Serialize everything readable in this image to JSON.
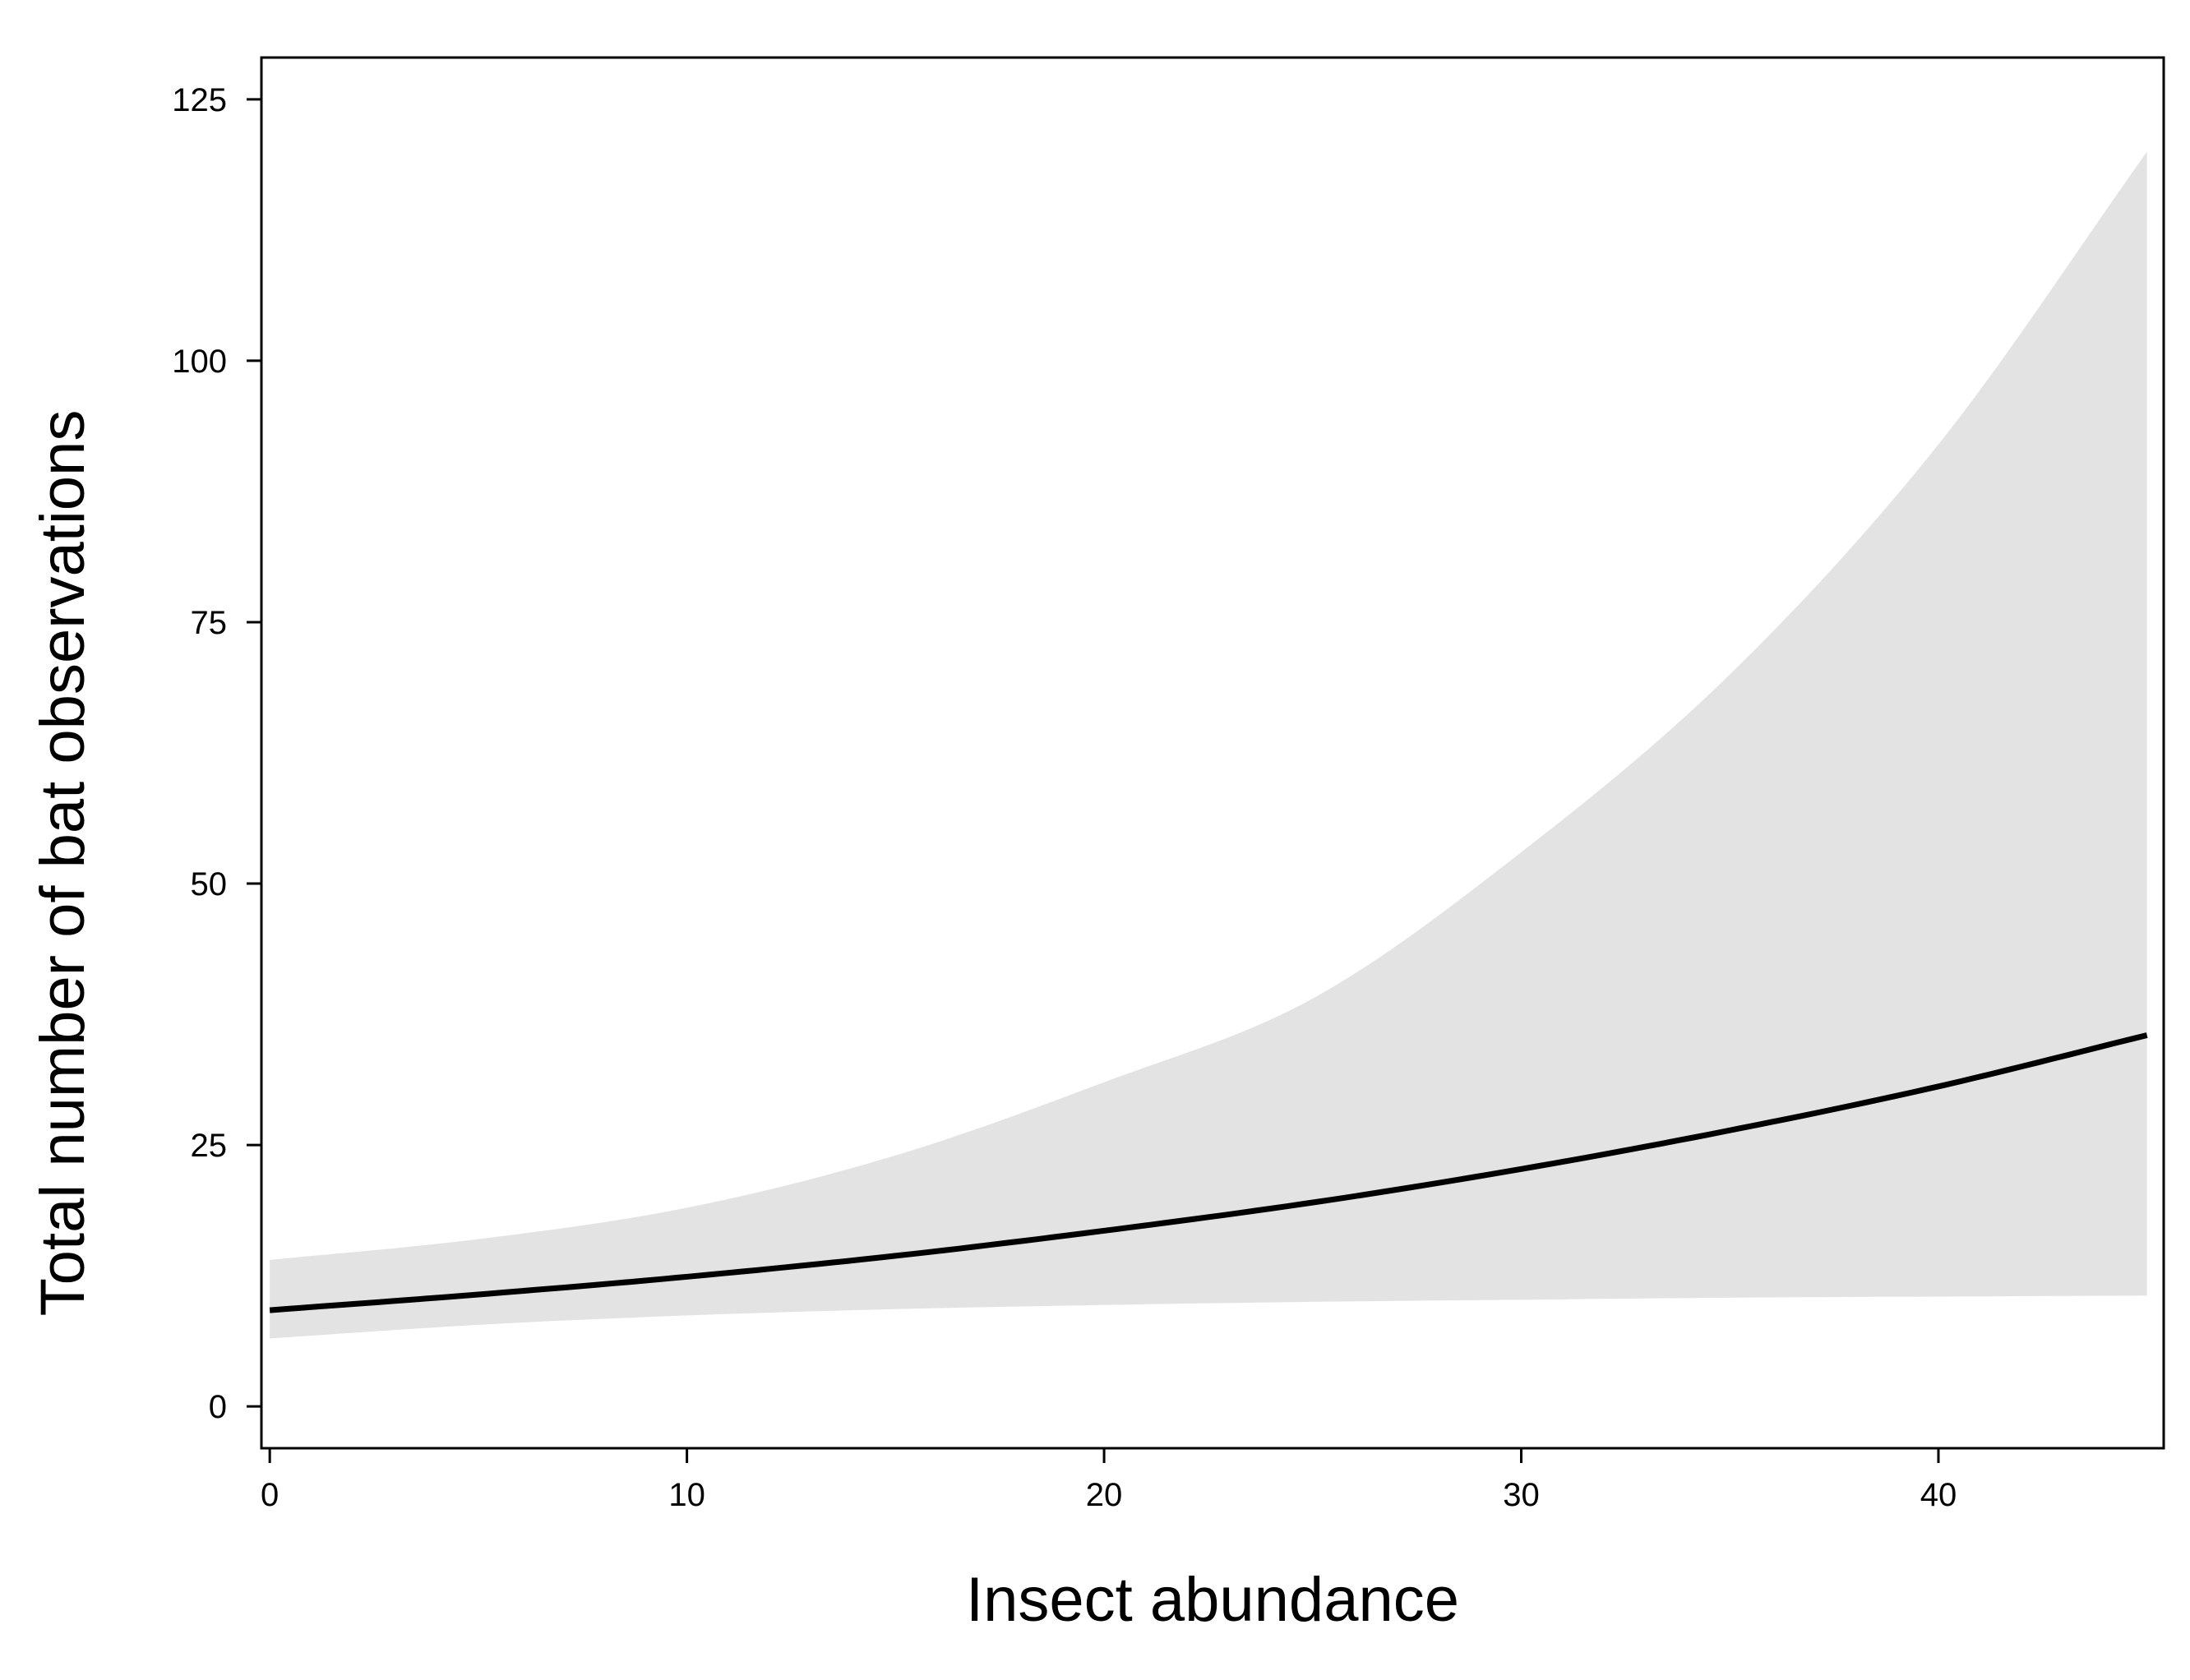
{
  "chart_data": {
    "type": "line",
    "title": "",
    "xlabel": "Insect abundance",
    "ylabel": "Total number of bat observations",
    "xlim": [
      -0.2,
      45.4
    ],
    "ylim": [
      -4,
      129
    ],
    "xticks": [
      0,
      10,
      20,
      30,
      40
    ],
    "yticks": [
      0,
      25,
      50,
      75,
      100,
      125
    ],
    "grid": false,
    "legend": "none",
    "colors": {
      "line": "#000000",
      "band": "#e3e3e3",
      "frame": "#000000"
    },
    "series": [
      {
        "kind": "line",
        "x": [
          0,
          5,
          10,
          15,
          20,
          25,
          30,
          35,
          40,
          45
        ],
        "y": [
          9.2,
          10.7,
          12.4,
          14.4,
          16.8,
          19.5,
          22.7,
          26.4,
          30.6,
          35.5
        ]
      },
      {
        "kind": "confidence-band",
        "x": [
          0,
          5,
          10,
          15,
          20,
          25,
          30,
          35,
          40,
          45
        ],
        "upper": [
          14,
          16,
          19,
          24,
          31,
          39,
          53,
          70,
          92,
          120
        ],
        "lower": [
          6.5,
          7.8,
          8.7,
          9.3,
          9.7,
          10,
          10.2,
          10.4,
          10.5,
          10.6
        ]
      }
    ]
  }
}
